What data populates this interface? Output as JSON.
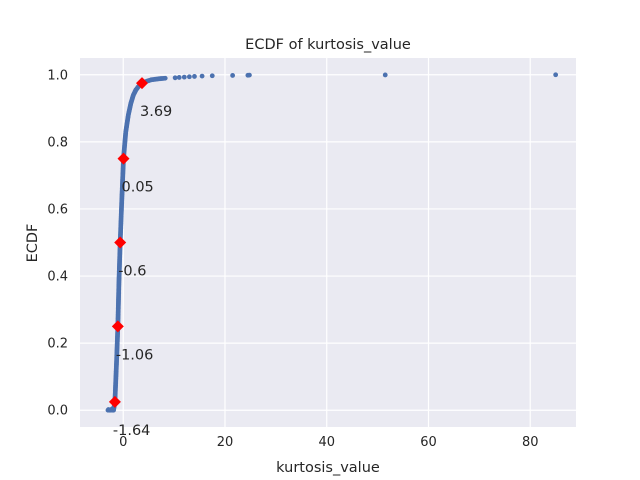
{
  "chart_data": {
    "type": "scatter",
    "title": "ECDF of kurtosis_value",
    "xlabel": "kurtosis_value",
    "ylabel": "ECDF",
    "xlim": [
      -8.5,
      89
    ],
    "ylim": [
      -0.05,
      1.05
    ],
    "x_ticks": [
      0,
      20,
      40,
      60,
      80
    ],
    "y_ticks": [
      0.0,
      0.2,
      0.4,
      0.6,
      0.8,
      1.0
    ],
    "x_tick_labels": [
      "0",
      "20",
      "40",
      "60",
      "80"
    ],
    "y_tick_labels": [
      "0.0",
      "0.2",
      "0.4",
      "0.6",
      "0.8",
      "1.0"
    ],
    "grid": true,
    "series_color": "#4c72b0",
    "marker_color": "#ff0000",
    "background_color": "#eaeaf2",
    "ecdf_curve": [
      [
        -3.0,
        0.0
      ],
      [
        -1.9,
        0.0
      ],
      [
        -1.64,
        0.025
      ],
      [
        -1.3,
        0.15
      ],
      [
        -1.06,
        0.25
      ],
      [
        -0.85,
        0.38
      ],
      [
        -0.6,
        0.5
      ],
      [
        -0.3,
        0.62
      ],
      [
        0.05,
        0.75
      ],
      [
        0.5,
        0.83
      ],
      [
        1.0,
        0.88
      ],
      [
        1.5,
        0.915
      ],
      [
        2.0,
        0.94
      ],
      [
        2.5,
        0.955
      ],
      [
        3.0,
        0.965
      ],
      [
        3.69,
        0.975
      ],
      [
        4.5,
        0.98
      ],
      [
        5.5,
        0.985
      ],
      [
        7.0,
        0.988
      ],
      [
        8.5,
        0.99
      ]
    ],
    "outliers": [
      [
        -2.9,
        0.002
      ],
      [
        -2.2,
        0.004
      ],
      [
        10.2,
        0.991
      ],
      [
        11.0,
        0.992
      ],
      [
        12.0,
        0.993
      ],
      [
        13.0,
        0.994
      ],
      [
        14.0,
        0.995
      ],
      [
        15.5,
        0.996
      ],
      [
        17.5,
        0.997
      ],
      [
        21.5,
        0.998
      ],
      [
        24.5,
        0.9985
      ],
      [
        24.8,
        0.999
      ],
      [
        51.5,
        0.9995
      ],
      [
        85.0,
        1.0
      ]
    ],
    "quantile_markers": [
      {
        "x": -1.64,
        "y": 0.025,
        "label": "-1.64"
      },
      {
        "x": -1.06,
        "y": 0.25,
        "label": "-1.06"
      },
      {
        "x": -0.6,
        "y": 0.5,
        "label": "-0.6"
      },
      {
        "x": 0.05,
        "y": 0.75,
        "label": "0.05"
      },
      {
        "x": 3.69,
        "y": 0.975,
        "label": "3.69"
      }
    ]
  }
}
